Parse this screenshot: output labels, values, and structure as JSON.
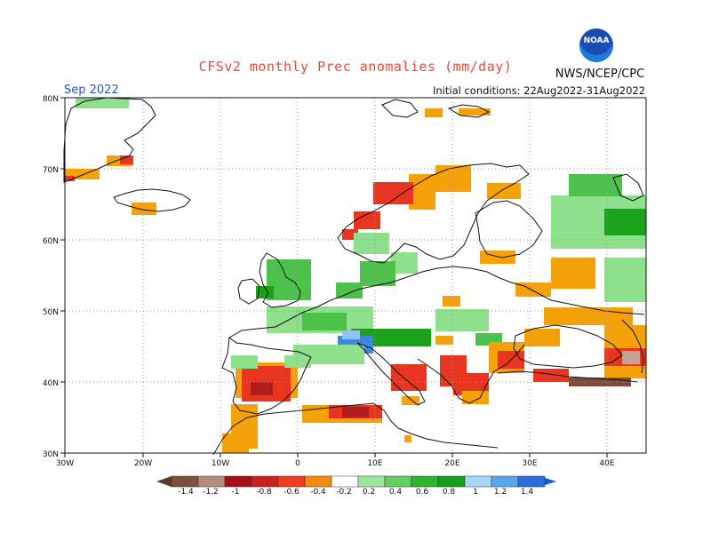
{
  "header": {
    "title": "CFSv2 monthly Prec anomalies (mm/day)",
    "org": "NWS/NCEP/CPC",
    "logo_text": "NOAA",
    "month": "Sep 2022",
    "initial_conditions": "Initial conditions: 22Aug2022-31Aug2022"
  },
  "map": {
    "lat_labels": [
      "80N",
      "70N",
      "60N",
      "50N",
      "40N",
      "30N"
    ],
    "lon_labels": [
      "30W",
      "20W",
      "10W",
      "0",
      "10E",
      "20E",
      "30E",
      "40E"
    ]
  },
  "legend": {
    "labels": [
      "-1.4",
      "-1.2",
      "-1",
      "-0.8",
      "-0.6",
      "-0.4",
      "-0.2",
      "0.2",
      "0.4",
      "0.6",
      "0.8",
      "1",
      "1.2",
      "1.4"
    ],
    "colors": [
      "#7d4f3c",
      "#b48b7c",
      "#a50f15",
      "#cd1f1f",
      "#f03c1e",
      "#f28c10",
      "#ffffff",
      "#9ce69a",
      "#62cf62",
      "#2db52d",
      "#15a01a",
      "#a8d8f5",
      "#5aa6eb",
      "#2a6fe0"
    ],
    "low_color": "#5b3a2c",
    "high_color": "#1c54d6"
  },
  "colors": {
    "orange": "#f5a20a",
    "red": "#e8351f",
    "darkred": "#b01e1e",
    "lightgreen": "#8fe08c",
    "green": "#4cc24c",
    "darkgreen": "#1aa31a",
    "blue": "#3d87e0",
    "lightblue": "#8fc3f0",
    "brown": "#7b4c3a",
    "tan": "#c4a498"
  }
}
